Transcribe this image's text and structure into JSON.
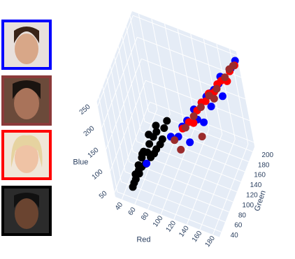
{
  "chart_data": {
    "type": "scatter3d",
    "xlabel": "Red",
    "ylabel": "Green",
    "zlabel": "Blue",
    "xlim": [
      30,
      190
    ],
    "xticks": [
      40,
      60,
      80,
      100,
      120,
      140,
      160,
      180
    ],
    "ylim": [
      30,
      210
    ],
    "yticks": [
      40,
      60,
      80,
      100,
      120,
      140,
      160,
      180,
      200
    ],
    "zlim": [
      40,
      260
    ],
    "zticks": [
      50,
      100,
      150,
      200,
      250
    ],
    "grid": true,
    "series": [
      {
        "color": "#000000",
        "x": [
          55,
          60,
          62,
          65,
          68,
          70,
          72,
          75,
          78,
          80,
          82,
          85,
          88,
          90,
          92,
          95,
          98,
          100,
          105,
          110,
          58,
          66,
          74,
          86,
          96
        ],
        "y": [
          45,
          50,
          48,
          55,
          52,
          58,
          60,
          62,
          58,
          66,
          70,
          68,
          72,
          76,
          74,
          80,
          78,
          85,
          88,
          92,
          46,
          54,
          60,
          70,
          80
        ],
        "z": [
          60,
          75,
          90,
          85,
          110,
          100,
          120,
          105,
          140,
          130,
          115,
          150,
          125,
          160,
          135,
          170,
          145,
          150,
          175,
          190,
          70,
          95,
          130,
          170,
          185
        ]
      },
      {
        "color": "#0000ff",
        "x": [
          120,
          130,
          140,
          145,
          150,
          155,
          160,
          165,
          170,
          175,
          180,
          185,
          135,
          150,
          160,
          170,
          78,
          110,
          125,
          190
        ],
        "y": [
          100,
          120,
          130,
          125,
          140,
          150,
          155,
          160,
          170,
          165,
          175,
          190,
          105,
          135,
          150,
          180,
          60,
          95,
          110,
          200
        ],
        "z": [
          150,
          170,
          190,
          175,
          200,
          205,
          210,
          215,
          220,
          200,
          230,
          240,
          140,
          160,
          185,
          225,
          110,
          150,
          165,
          250
        ]
      },
      {
        "color": "#ff0000",
        "x": [
          125,
          135,
          145,
          150,
          160,
          165,
          170,
          175,
          180,
          185,
          190,
          140,
          155
        ],
        "y": [
          110,
          115,
          130,
          140,
          150,
          160,
          165,
          170,
          180,
          185,
          195,
          120,
          145
        ],
        "z": [
          160,
          175,
          190,
          200,
          215,
          210,
          225,
          230,
          220,
          240,
          245,
          170,
          200
        ]
      },
      {
        "color": "#9b2c2c",
        "x": [
          115,
          130,
          140,
          150,
          160,
          170,
          180,
          185,
          145,
          165,
          190,
          120
        ],
        "y": [
          95,
          110,
          125,
          135,
          150,
          160,
          175,
          185,
          130,
          155,
          190,
          100
        ],
        "z": [
          145,
          165,
          180,
          195,
          210,
          220,
          235,
          245,
          130,
          200,
          250,
          120
        ]
      }
    ]
  }
}
